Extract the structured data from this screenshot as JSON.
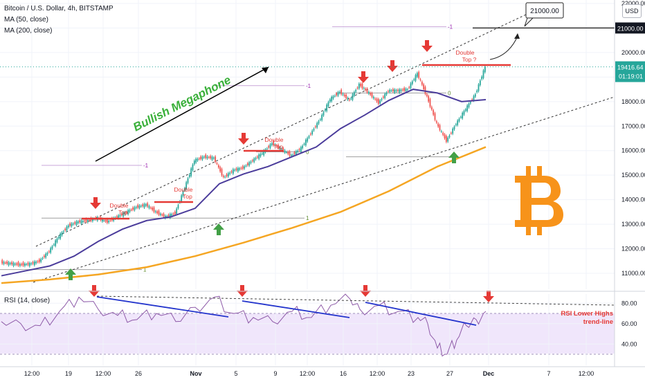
{
  "header": {
    "title": "Bitcoin / U.S. Dollar, 4h, BITSTAMP",
    "ma50_label": "MA (50, close)",
    "ma200_label": "MA (200, close)",
    "rsi_label": "RSI (14, close)",
    "currency": "USD"
  },
  "colors": {
    "price_up": "#26a69a",
    "price_down": "#ef5350",
    "ma50": "#4b3c9b",
    "ma200": "#f5a623",
    "rsi": "#8e5aa8",
    "rsi_band_fill": "#f0e6fb",
    "annotation_red": "#e53935",
    "annotation_green": "#43a047",
    "megaphone_text": "#3ab03a",
    "rsi_trendline": "#2233cc",
    "bitcoin_logo": "#f7931a",
    "last_price_bg": "#26a69a"
  },
  "chart_data": [
    {
      "type": "line",
      "title": "Bitcoin / U.S. Dollar, 4h, BITSTAMP",
      "x_ticks": [
        "12:00",
        "19",
        "12:00",
        "26",
        "Nov",
        "5",
        "9",
        "12:00",
        "16",
        "12:00",
        "23",
        "27",
        "Dec",
        "7",
        "12:00"
      ],
      "y_ticks": [
        11000,
        12000,
        13000,
        14000,
        15000,
        16000,
        17000,
        18000,
        19000,
        20000,
        21000,
        22000
      ],
      "ylim": [
        10500,
        22000
      ],
      "grid": true,
      "series": [
        {
          "name": "",
          "x": [
            0,
            2,
            4,
            6,
            8,
            10,
            12,
            14,
            16,
            18,
            20,
            22,
            24,
            26,
            28,
            30,
            32,
            34,
            36,
            38,
            40,
            42,
            44,
            46,
            48,
            50,
            52,
            54,
            56,
            58,
            60,
            62,
            64,
            66,
            68,
            70,
            72,
            74,
            76,
            78,
            80,
            82,
            84,
            86,
            88,
            90,
            92,
            94,
            96,
            98,
            100
          ],
          "values": [
            11450,
            11400,
            11350,
            11380,
            11500,
            11900,
            12500,
            12950,
            13100,
            13150,
            13250,
            13100,
            13300,
            13500,
            13700,
            13800,
            13500,
            13300,
            13450,
            14500,
            15600,
            15750,
            15700,
            14900,
            15200,
            15300,
            15600,
            15900,
            16300,
            16050,
            15800,
            16100,
            16700,
            17300,
            18100,
            18400,
            18050,
            18700,
            18350,
            17950,
            18450,
            18450,
            18500,
            19150,
            18200,
            17100,
            16400,
            17100,
            17700,
            18300,
            19416.64
          ]
        },
        {
          "name": "MA (50, close)",
          "x": [
            0,
            5,
            10,
            15,
            20,
            25,
            30,
            35,
            40,
            45,
            50,
            55,
            60,
            65,
            70,
            75,
            80,
            85,
            90,
            95,
            100
          ],
          "values": [
            10900,
            11100,
            11300,
            11700,
            12300,
            12800,
            13150,
            13300,
            13650,
            14650,
            15050,
            15350,
            15750,
            16150,
            16900,
            17450,
            18050,
            18500,
            18350,
            18000,
            18080
          ]
        },
        {
          "name": "MA (200, close)",
          "x": [
            0,
            10,
            20,
            30,
            40,
            50,
            60,
            70,
            80,
            90,
            100
          ],
          "values": [
            10600,
            10750,
            10950,
            11250,
            11700,
            12250,
            12850,
            13500,
            14350,
            15350,
            16150
          ]
        }
      ],
      "levels": [
        {
          "label": "1",
          "value": 11150
        },
        {
          "label": "1",
          "value": 13250
        },
        {
          "label": "1",
          "value": 15750
        },
        {
          "label": "-1",
          "value": 15400
        },
        {
          "label": "-1",
          "value": 18650
        },
        {
          "label": "-1",
          "value": 21050
        },
        {
          "label": "0",
          "value": 15950
        },
        {
          "label": "0",
          "value": 18350
        }
      ],
      "price_labels": [
        {
          "text": "21000.00",
          "value": 21000
        },
        {
          "text": "19416.64",
          "value": 19416.64
        },
        {
          "text": "01:19:01",
          "value": 19050
        }
      ],
      "annotations": {
        "double_top_1": [
          "Double",
          "Top"
        ],
        "double_top_2": [
          "Double",
          "Top"
        ],
        "double_top_3": [
          "Double",
          "Top"
        ],
        "double_top_4": [
          "Double",
          "Top ?"
        ],
        "megaphone": "Bullish Megaphone",
        "target_callout": "21000.00",
        "rsi_note": [
          "RSI Lower Highs",
          "trend-line"
        ]
      }
    },
    {
      "type": "line",
      "title": "RSI (14, close)",
      "y_ticks": [
        40,
        60,
        80
      ],
      "ylim": [
        20,
        90
      ],
      "band": [
        30,
        70
      ],
      "series": [
        {
          "name": "",
          "x": [
            0,
            4,
            8,
            12,
            16,
            20,
            24,
            28,
            32,
            36,
            40,
            44,
            48,
            52,
            56,
            60,
            64,
            68,
            72,
            74,
            78,
            82,
            86,
            88,
            90,
            92,
            94,
            96,
            98,
            100
          ],
          "values": [
            62,
            60,
            58,
            72,
            86,
            74,
            68,
            64,
            70,
            62,
            76,
            86,
            70,
            66,
            62,
            72,
            66,
            78,
            84,
            74,
            78,
            72,
            66,
            60,
            36,
            30,
            44,
            58,
            64,
            72
          ]
        }
      ]
    }
  ]
}
